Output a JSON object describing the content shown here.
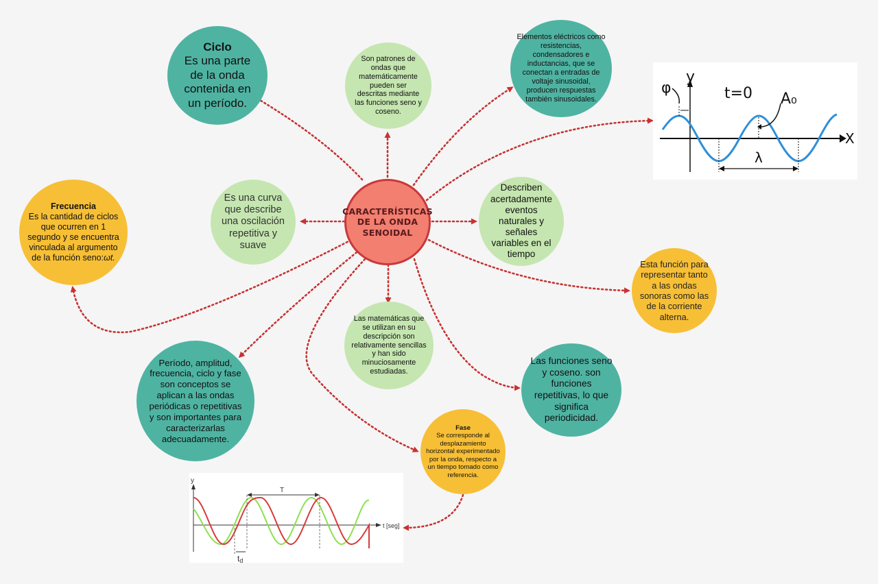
{
  "center": {
    "title_line1": "CARACTERÍSTICAS",
    "title_line2": "DE LA ONDA",
    "title_line3": "SENOIDAL"
  },
  "nodes": {
    "ciclo": {
      "title": "Ciclo",
      "text": "Es una parte de la onda contenida en un período."
    },
    "patrones": {
      "text": "Son patrones de ondas que matemáticamente pueden ser descritas mediante las funciones seno y coseno."
    },
    "elementos": {
      "text": "Elementos eléctricos como resistencias, condensadores e inductancias, que se conectan a entradas de voltaje sinusoidal, producen respuestas también sinusoidales."
    },
    "curva": {
      "text": "Es una curva que describe una oscilación repetitiva y suave"
    },
    "describen": {
      "text": "Describen acertadamente eventos naturales y señales variables en el tiempo"
    },
    "frecuencia": {
      "title": "Frecuencia",
      "text": "Es la cantidad de ciclos que ocurren en 1 segundo y se encuentra vinculada al argumento de la función seno:",
      "formula": "ωt."
    },
    "funcion": {
      "text": "Esta función para representar tanto a las ondas sonoras como las de la corriente alterna."
    },
    "matematicas": {
      "text": "Las matemáticas que se utilizan en su descripción son relativamente sencillas y han sido minuciosamente estudiadas."
    },
    "periodo": {
      "text": "Período, amplitud, frecuencia, ciclo y fase son conceptos se aplican a las ondas periódicas o repetitivas y son importantes para caracterizarlas adecuadamente."
    },
    "funciones": {
      "text": "Las funciones seno y coseno. son funciones repetitivas, lo que significa periodicidad."
    },
    "fase": {
      "title": "Fase",
      "text": "Se corresponde al desplazamiento horizontal experimentado por la onda, respecto a un tiempo tomado como referencia."
    }
  },
  "wave_diagram": {
    "phi": "φ",
    "y": "y",
    "t0": "t=0",
    "amp": "A₀",
    "x": "X",
    "lambda": "λ"
  },
  "phase_diagram": {
    "y": "y",
    "period": "T",
    "t_axis": "t [seg]",
    "td": "t",
    "td_sub": "d"
  },
  "colors": {
    "teal": "#4fb3a2",
    "light_green": "#c5e6b0",
    "yellow": "#f7bf36",
    "center": "#f27f70",
    "connector": "#c83232",
    "wave_blue": "#2f8fd8",
    "wave_red": "#d83a3a",
    "wave_green": "#8ee04e"
  }
}
